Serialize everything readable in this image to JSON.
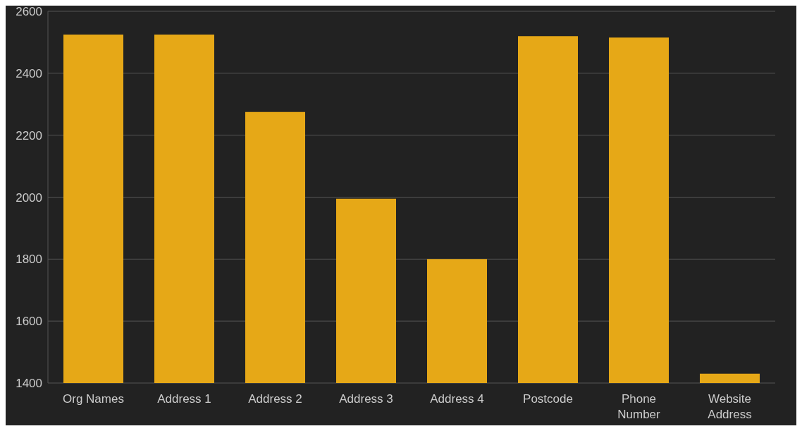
{
  "chart_data": {
    "type": "bar",
    "categories": [
      "Org Names",
      "Address 1",
      "Address 2",
      "Address 3",
      "Address 4",
      "Postcode",
      "Phone Number",
      "Website Address"
    ],
    "values": [
      2525,
      2525,
      2275,
      1995,
      1800,
      2520,
      2515,
      1430
    ],
    "color": "#e6a817",
    "ylim": [
      1400,
      2600
    ],
    "yticks": [
      1400,
      1600,
      1800,
      2000,
      2200,
      2400,
      2600
    ],
    "grid": "y",
    "legend": false
  }
}
